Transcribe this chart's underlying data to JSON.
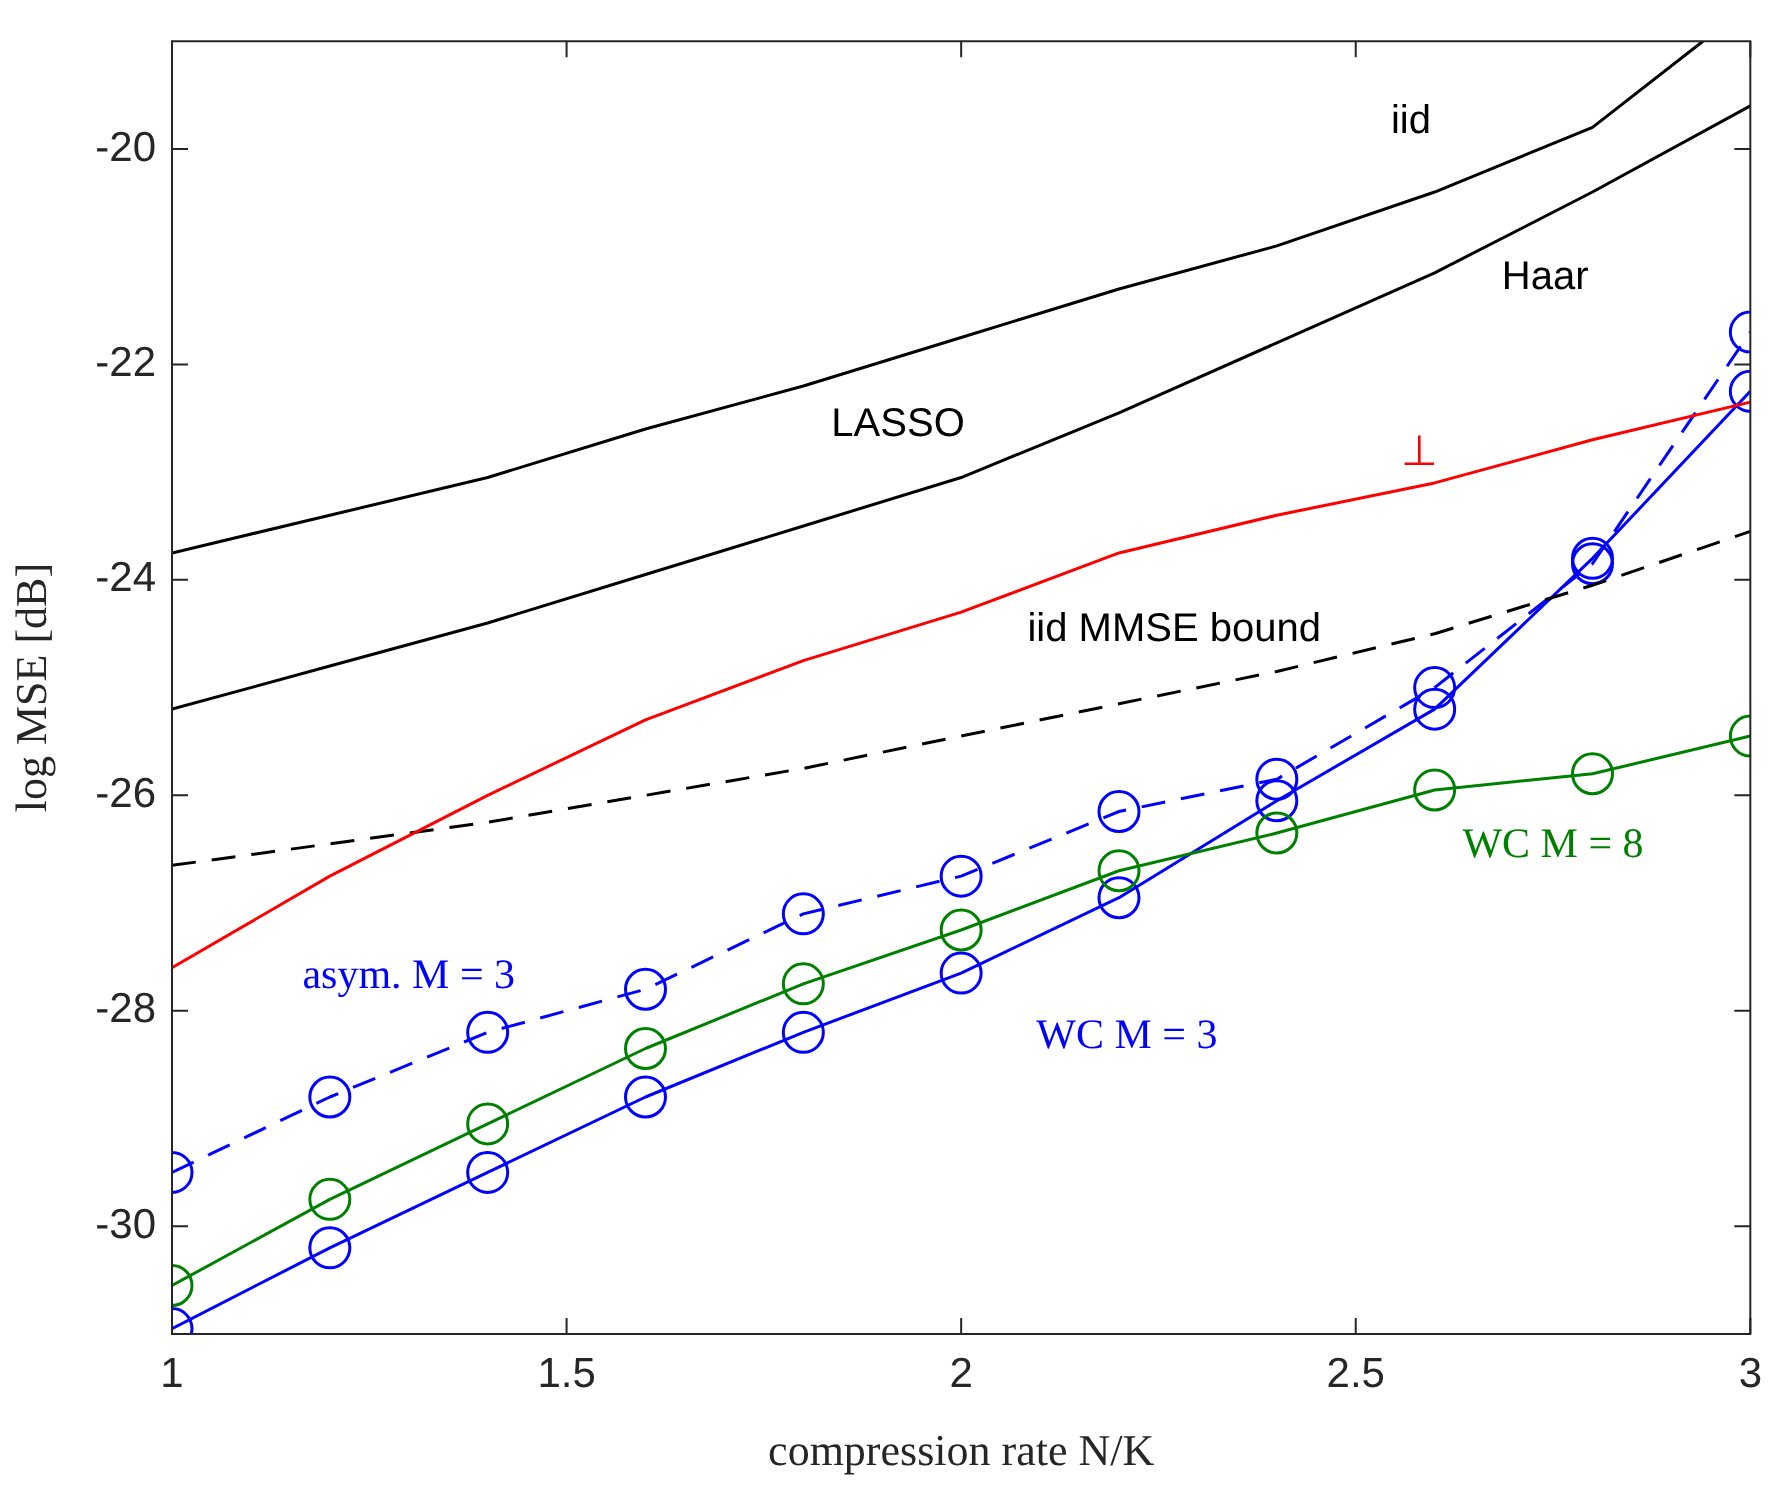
{
  "chart_data": {
    "type": "line",
    "xlabel": "compression rate N/K",
    "ylabel": "log MSE [dB]",
    "xlim": [
      1,
      3
    ],
    "xticks": [
      1,
      1.5,
      2,
      2.5,
      3
    ],
    "ylim": [
      -31,
      -19
    ],
    "yticks": [
      -30,
      -28,
      -26,
      -24,
      -22,
      -20
    ],
    "grid": false,
    "legend": false,
    "x": [
      1,
      1.2,
      1.4,
      1.6,
      1.8,
      2,
      2.2,
      2.4,
      2.6,
      2.8,
      3
    ],
    "series": [
      {
        "name": "iid",
        "color": "#000000",
        "x": [
          1,
          1.2,
          1.4,
          1.6,
          1.8,
          2,
          2.2,
          2.4,
          2.6,
          2.8,
          2.94
        ],
        "values": [
          -23.75,
          -23.4,
          -23.05,
          -22.6,
          -22.2,
          -21.75,
          -21.3,
          -20.9,
          -20.4,
          -19.8,
          -19
        ],
        "marker": "none",
        "line_style": "solid"
      },
      {
        "name": "Haar",
        "color": "#000000",
        "values": [
          -25.2,
          -24.8,
          -24.4,
          -23.95,
          -23.5,
          -23.05,
          -22.45,
          -21.8,
          -21.15,
          -20.4,
          -19.6
        ],
        "marker": "none",
        "line_style": "solid"
      },
      {
        "name": "⊥",
        "color": "#ff0000",
        "values": [
          -27.6,
          -26.75,
          -26,
          -25.3,
          -24.75,
          -24.3,
          -23.75,
          -23.4,
          -23.1,
          -22.7,
          -22.35
        ],
        "marker": "none",
        "line_style": "solid"
      },
      {
        "name": "iid MMSE bound",
        "color": "#000000",
        "values": [
          -26.65,
          -26.45,
          -26.25,
          -26,
          -25.75,
          -25.45,
          -25.15,
          -24.85,
          -24.5,
          -24.05,
          -23.55
        ],
        "marker": "none",
        "line_style": "dashed"
      },
      {
        "name": "asym. M = 3",
        "color": "#0000ff",
        "values": [
          -29.5,
          -28.8,
          -28.2,
          -27.8,
          -27.1,
          -26.75,
          -26.15,
          -25.85,
          -25,
          -23.85,
          -21.7
        ],
        "marker": "circle",
        "line_style": "dashed"
      },
      {
        "name": "WC M = 8",
        "color": "#008000",
        "values": [
          -30.55,
          -29.75,
          -29.05,
          -28.35,
          -27.75,
          -27.25,
          -26.7,
          -26.35,
          -25.95,
          -25.8,
          -25.45
        ],
        "marker": "circle",
        "line_style": "solid"
      },
      {
        "name": "WC M = 3",
        "color": "#0000ff",
        "values": [
          -30.95,
          -30.2,
          -29.5,
          -28.8,
          -28.2,
          -27.65,
          -26.95,
          -26.05,
          -25.2,
          -23.8,
          -22.25
        ],
        "marker": "circle",
        "line_style": "solid"
      }
    ],
    "annotations": [
      "LASSO"
    ]
  }
}
